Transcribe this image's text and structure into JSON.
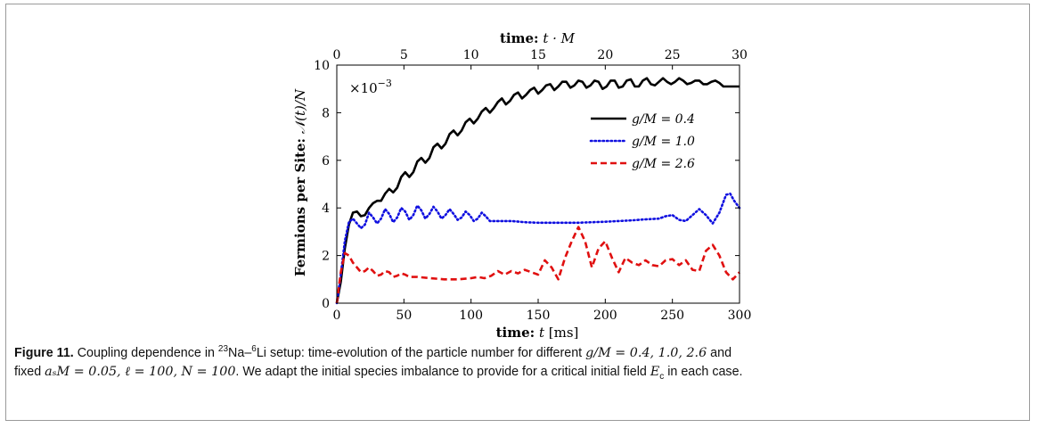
{
  "chart_data": {
    "type": "line",
    "xlabel_bottom": "time:",
    "xlabel_bottom_math": "t",
    "xlabel_bottom_unit": "[ms]",
    "xlabel_top": "time:",
    "xlabel_top_math": "t · M",
    "ylabel": "Fermions per Site:",
    "ylabel_math": "𝒩(t)/N",
    "scale_note": "×10",
    "scale_exp": "−3",
    "xlim": [
      0,
      300
    ],
    "xlim_top": [
      0,
      30
    ],
    "ylim": [
      0,
      10
    ],
    "xticks": [
      0,
      50,
      100,
      150,
      200,
      250,
      300
    ],
    "xticks_top": [
      0,
      5,
      10,
      15,
      20,
      25,
      30
    ],
    "yticks": [
      0,
      2,
      4,
      6,
      8,
      10
    ],
    "legend_position": "top-right",
    "series": [
      {
        "name": "g/M = 0.4",
        "color": "#000000",
        "style": "solid",
        "x": [
          0,
          3,
          6,
          9,
          12,
          15,
          18,
          21,
          24,
          27,
          30,
          33,
          36,
          39,
          42,
          45,
          48,
          51,
          54,
          57,
          60,
          63,
          66,
          69,
          72,
          75,
          78,
          81,
          84,
          87,
          90,
          93,
          96,
          99,
          102,
          105,
          108,
          111,
          114,
          117,
          120,
          123,
          126,
          129,
          132,
          135,
          138,
          141,
          144,
          147,
          150,
          153,
          156,
          159,
          162,
          165,
          168,
          171,
          174,
          177,
          180,
          183,
          186,
          189,
          192,
          195,
          198,
          201,
          204,
          207,
          210,
          213,
          216,
          219,
          222,
          225,
          228,
          231,
          234,
          237,
          240,
          243,
          246,
          249,
          252,
          255,
          258,
          261,
          264,
          267,
          270,
          273,
          276,
          279,
          282,
          285,
          288,
          291,
          294,
          297,
          300
        ],
        "y": [
          0,
          0.9,
          2.3,
          3.3,
          3.8,
          3.85,
          3.65,
          3.7,
          4.0,
          4.2,
          4.3,
          4.3,
          4.6,
          4.8,
          4.65,
          4.85,
          5.3,
          5.5,
          5.3,
          5.5,
          5.95,
          6.1,
          5.9,
          6.1,
          6.55,
          6.7,
          6.5,
          6.7,
          7.1,
          7.25,
          7.05,
          7.25,
          7.6,
          7.75,
          7.55,
          7.75,
          8.05,
          8.2,
          8.0,
          8.2,
          8.45,
          8.6,
          8.35,
          8.5,
          8.75,
          8.85,
          8.6,
          8.75,
          8.95,
          9.05,
          8.8,
          8.95,
          9.15,
          9.2,
          8.95,
          9.1,
          9.3,
          9.3,
          9.05,
          9.15,
          9.35,
          9.3,
          9.05,
          9.15,
          9.35,
          9.3,
          9.0,
          9.1,
          9.35,
          9.35,
          9.05,
          9.1,
          9.35,
          9.4,
          9.1,
          9.1,
          9.35,
          9.45,
          9.2,
          9.15,
          9.3,
          9.45,
          9.3,
          9.2,
          9.3,
          9.45,
          9.35,
          9.2,
          9.25,
          9.35,
          9.35,
          9.2,
          9.2,
          9.3,
          9.35,
          9.25,
          9.1,
          9.1,
          9.1,
          9.1,
          9.1
        ]
      },
      {
        "name": "g/M = 1.0",
        "color": "#1010e0",
        "style": "dotted",
        "x": [
          0,
          3,
          6,
          9,
          12,
          15,
          18,
          21,
          24,
          27,
          30,
          33,
          36,
          39,
          42,
          45,
          48,
          51,
          54,
          57,
          60,
          63,
          66,
          69,
          72,
          75,
          78,
          81,
          84,
          87,
          90,
          93,
          96,
          99,
          102,
          105,
          108,
          111,
          114,
          117,
          120,
          130,
          140,
          150,
          160,
          170,
          180,
          190,
          200,
          210,
          220,
          230,
          240,
          245,
          250,
          255,
          260,
          265,
          270,
          275,
          280,
          285,
          290,
          293,
          296,
          300
        ],
        "y": [
          0,
          1.2,
          2.6,
          3.4,
          3.55,
          3.35,
          3.15,
          3.3,
          3.8,
          3.6,
          3.35,
          3.55,
          3.95,
          3.75,
          3.4,
          3.6,
          4.0,
          3.85,
          3.5,
          3.7,
          4.1,
          3.9,
          3.55,
          3.75,
          4.05,
          3.85,
          3.55,
          3.7,
          3.95,
          3.75,
          3.5,
          3.6,
          3.85,
          3.7,
          3.45,
          3.55,
          3.8,
          3.65,
          3.45,
          3.45,
          3.45,
          3.45,
          3.4,
          3.38,
          3.38,
          3.38,
          3.38,
          3.4,
          3.42,
          3.45,
          3.48,
          3.52,
          3.55,
          3.65,
          3.7,
          3.5,
          3.45,
          3.7,
          3.95,
          3.7,
          3.35,
          3.8,
          4.55,
          4.6,
          4.3,
          4.0
        ]
      },
      {
        "name": "g/M = 2.6",
        "color": "#e01010",
        "style": "dashed",
        "x": [
          0,
          3,
          6,
          9,
          12,
          15,
          18,
          21,
          24,
          27,
          30,
          33,
          36,
          39,
          42,
          45,
          48,
          51,
          54,
          57,
          60,
          70,
          80,
          90,
          100,
          105,
          110,
          115,
          120,
          125,
          130,
          135,
          140,
          145,
          150,
          155,
          160,
          165,
          170,
          175,
          180,
          185,
          190,
          195,
          200,
          205,
          210,
          215,
          220,
          225,
          230,
          235,
          240,
          245,
          250,
          255,
          260,
          265,
          270,
          275,
          280,
          285,
          290,
          295,
          300
        ],
        "y": [
          0,
          1.3,
          2.1,
          2.0,
          1.7,
          1.5,
          1.3,
          1.35,
          1.5,
          1.35,
          1.15,
          1.2,
          1.35,
          1.3,
          1.1,
          1.15,
          1.25,
          1.2,
          1.1,
          1.1,
          1.1,
          1.05,
          1.0,
          1.0,
          1.05,
          1.1,
          1.05,
          1.15,
          1.35,
          1.2,
          1.35,
          1.25,
          1.4,
          1.3,
          1.2,
          1.8,
          1.5,
          1.0,
          1.9,
          2.6,
          3.2,
          2.6,
          1.5,
          2.3,
          2.6,
          1.9,
          1.3,
          1.9,
          1.7,
          1.6,
          1.8,
          1.6,
          1.55,
          1.8,
          1.85,
          1.6,
          1.8,
          1.4,
          1.35,
          2.2,
          2.45,
          2.0,
          1.3,
          1.0,
          1.3
        ]
      }
    ]
  },
  "caption": {
    "label": "Figure 11.",
    "line1_part1": "Coupling dependence in ",
    "iso1": "23",
    "el1": "Na–",
    "iso2": "6",
    "el2": "Li setup: time-evolution of the particle number for different ",
    "math1": "g/M = 0.4, 1.0, 2.6",
    "line1_end": " and",
    "line2_start": "fixed ",
    "math2": "aₛM = 0.05, ℓ = 100, N = 100",
    "line2_rest": ". We adapt the initial species imbalance to provide for a critical initial field ",
    "math3": "E",
    "math3_sub": "c",
    "line2_end": " in each case."
  }
}
